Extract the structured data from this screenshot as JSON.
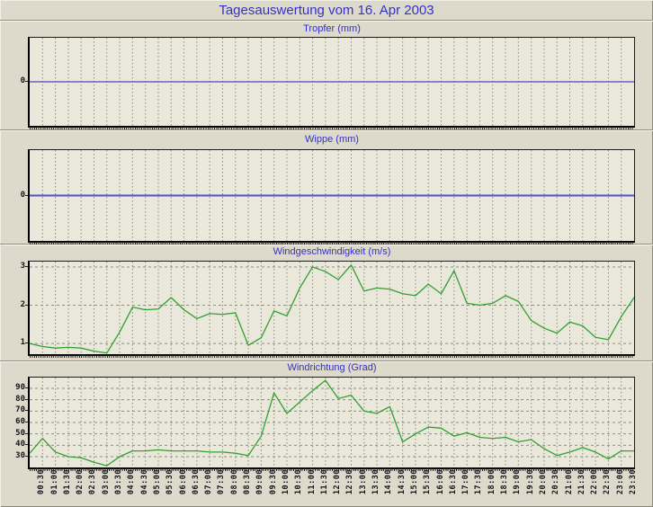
{
  "window": {
    "title": "Tagesauswertung vom 16. Apr 2003"
  },
  "colors": {
    "title_blue": "#3232c8",
    "series_green": "#32a032",
    "zero_line_tropfer": "#2020b8",
    "zero_line_wippe": "#5050cc",
    "page_bg": "#ddd9cb",
    "plot_bg": "#e9e8da",
    "grid_gray": "#8c8c84",
    "tick_text": "#14141c"
  },
  "time_axis": {
    "start": "00:00",
    "interval_minutes": 30,
    "categories": [
      "00:00",
      "00:30",
      "01:00",
      "01:30",
      "02:00",
      "02:30",
      "03:00",
      "03:30",
      "04:00",
      "04:30",
      "05:00",
      "05:30",
      "06:00",
      "06:30",
      "07:00",
      "07:30",
      "08:00",
      "08:30",
      "09:00",
      "09:30",
      "10:00",
      "10:30",
      "11:00",
      "11:30",
      "12:00",
      "12:30",
      "13:00",
      "13:30",
      "14:00",
      "14:30",
      "15:00",
      "15:30",
      "16:00",
      "16:30",
      "17:00",
      "17:30",
      "18:00",
      "18:30",
      "19:00",
      "19:30",
      "20:00",
      "20:30",
      "21:00",
      "21:30",
      "22:00",
      "22:30",
      "23:00",
      "23:30"
    ],
    "shown_labels": [
      "00:30",
      "01:00",
      "01:30",
      "02:00",
      "02:30",
      "03:00",
      "03:30",
      "04:00",
      "04:30",
      "05:00",
      "05:30",
      "06:00",
      "06:30",
      "07:00",
      "07:30",
      "08:00",
      "08:30",
      "09:00",
      "09:30",
      "10:00",
      "10:30",
      "11:00",
      "11:30",
      "12:00",
      "12:30",
      "13:00",
      "13:30",
      "14:00",
      "14:30",
      "15:00",
      "15:30",
      "16:00",
      "16:30",
      "17:00",
      "17:30",
      "18:00",
      "18:30",
      "19:00",
      "19:30",
      "20:00",
      "20:30",
      "21:00",
      "21:30",
      "22:00",
      "22:30",
      "23:00",
      "23:30"
    ]
  },
  "chart_data": [
    {
      "type": "line",
      "title": "Tropfer (mm)",
      "ylabel": "mm",
      "yticks": [
        0
      ],
      "ylim": [
        -1,
        1
      ],
      "grid": "vertical-only",
      "line_color_key": "zero_line_tropfer",
      "line_width": 1,
      "values": [
        0,
        0,
        0,
        0,
        0,
        0,
        0,
        0,
        0,
        0,
        0,
        0,
        0,
        0,
        0,
        0,
        0,
        0,
        0,
        0,
        0,
        0,
        0,
        0,
        0,
        0,
        0,
        0,
        0,
        0,
        0,
        0,
        0,
        0,
        0,
        0,
        0,
        0,
        0,
        0,
        0,
        0,
        0,
        0,
        0,
        0,
        0,
        0
      ]
    },
    {
      "type": "line",
      "title": "Wippe (mm)",
      "ylabel": "mm",
      "yticks": [
        0
      ],
      "ylim": [
        -1,
        1
      ],
      "grid": "vertical-only",
      "line_color_key": "zero_line_wippe",
      "line_width": 2,
      "values": [
        0,
        0,
        0,
        0,
        0,
        0,
        0,
        0,
        0,
        0,
        0,
        0,
        0,
        0,
        0,
        0,
        0,
        0,
        0,
        0,
        0,
        0,
        0,
        0,
        0,
        0,
        0,
        0,
        0,
        0,
        0,
        0,
        0,
        0,
        0,
        0,
        0,
        0,
        0,
        0,
        0,
        0,
        0,
        0,
        0,
        0,
        0,
        0
      ]
    },
    {
      "type": "line",
      "title": "Windgeschwindigkeit (m/s)",
      "ylabel": "m/s",
      "yticks": [
        1,
        2,
        3
      ],
      "ylim": [
        0.72,
        3.14
      ],
      "grid": "both",
      "line_color_key": "series_green",
      "line_width": 1.3,
      "values": [
        1.0,
        0.92,
        0.88,
        0.9,
        0.88,
        0.8,
        0.75,
        1.3,
        1.95,
        1.88,
        1.9,
        2.2,
        1.88,
        1.65,
        1.78,
        1.76,
        1.8,
        0.95,
        1.15,
        1.85,
        1.72,
        2.45,
        3.0,
        2.88,
        2.67,
        3.05,
        2.37,
        2.45,
        2.42,
        2.3,
        2.25,
        2.55,
        2.3,
        2.9,
        2.05,
        2.0,
        2.05,
        2.25,
        2.1,
        1.6,
        1.4,
        1.27,
        1.56,
        1.46,
        1.16,
        1.1,
        1.7,
        2.2
      ]
    },
    {
      "type": "line",
      "title": "Windrichtung (Grad)",
      "ylabel": "Grad",
      "yticks": [
        30,
        40,
        50,
        60,
        70,
        80,
        90
      ],
      "ylim": [
        20.5,
        99.5
      ],
      "grid": "both",
      "line_color_key": "series_green",
      "line_width": 1.3,
      "values": [
        33,
        46,
        34,
        30,
        29,
        25,
        22,
        30,
        35,
        35,
        36,
        35,
        35,
        35,
        34,
        34,
        33,
        31,
        48,
        86,
        68,
        78,
        88,
        97,
        81,
        84,
        70,
        68,
        74,
        43,
        50,
        56,
        55,
        48,
        51,
        47,
        46,
        47,
        43,
        45,
        37,
        31,
        34,
        38,
        34,
        28,
        35,
        35
      ]
    }
  ]
}
